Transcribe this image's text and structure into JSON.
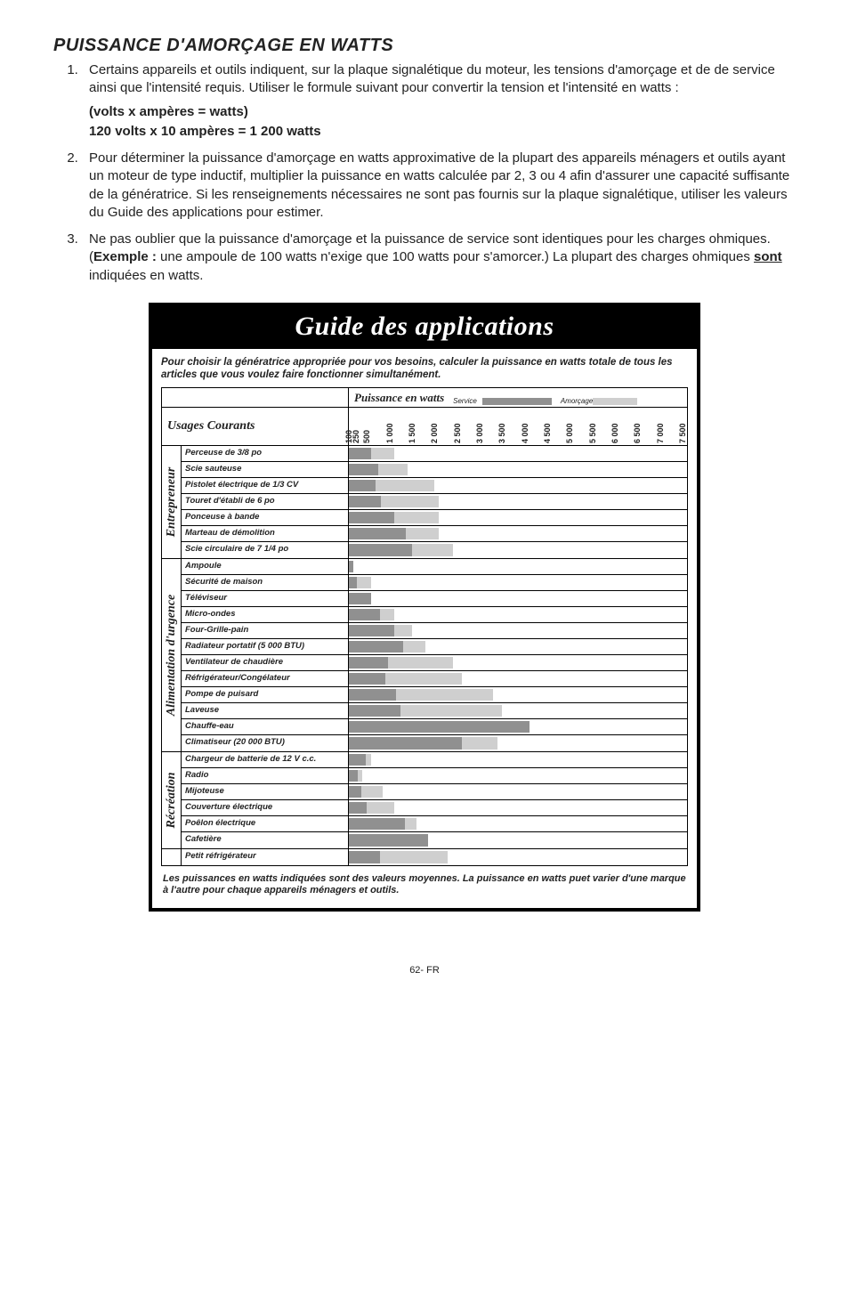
{
  "section_title": "PUISSANCE D'AMORÇAGE EN WATTS",
  "list": {
    "i1": "Certains appareils et outils indiquent, sur la plaque signalétique du moteur, les tensions d'amorçage et de de service ainsi que l'intensité requis. Utiliser le formule suivant pour convertir la tension et l'intensité en watts :",
    "i1_formula1": "(volts x ampères = watts)",
    "i1_formula2": "120 volts x 10 ampères = 1 200 watts",
    "i2": "Pour déterminer la puissance d'amorçage en watts approximative de la plupart des appareils ménagers et outils ayant un moteur de type inductif, multiplier la puissance en watts calculée par 2, 3 ou 4 afin d'assurer une capacité suffisante de la génératrice. Si les renseignements nécessaires ne sont pas fournis sur la plaque signalétique, utiliser les valeurs du Guide des applications pour estimer.",
    "i3_a": "Ne pas oublier que la puissance d'amorçage et la puissance de service sont identiques pour les charges ohmiques. (",
    "i3_bold": "Exemple  :",
    "i3_b": " une ampoule de 100 watts n'exige que 100 watts pour s'amorcer.) La plupart des charges ohmiques ",
    "i3_ul": "sont",
    "i3_c": " indiquées en watts."
  },
  "chart": {
    "title": "Guide des applications",
    "subtitle": "Pour choisir la génératrice appropriée pour vos besoins, calculer la puissance en watts totale de tous les articles que vous voulez faire fonctionner simultanément.",
    "wattage_label": "Puissance en watts",
    "service_label": "Service",
    "amorcage_label": "Amorçage",
    "usages_label": "Usages Courants",
    "footnote": "Les puissances en watts indiquées sont des valeurs moyennes. La puissance en watts puet varier d'une marque à l'autre pour chaque appareils ménagers et outils.",
    "max_watts": 7500,
    "ticks": [
      100,
      250,
      500,
      1000,
      1500,
      2000,
      2500,
      3000,
      3500,
      4000,
      4500,
      5000,
      5500,
      6000,
      6500,
      7000,
      7500
    ],
    "svc_color": "#909090",
    "amc_color": "#cfcfcf",
    "groups": [
      {
        "name": "Entrepreneur",
        "rows": [
          {
            "label": "Perceuse de 3/8 po",
            "svc": 500,
            "amc": 1000
          },
          {
            "label": "Scie sauteuse",
            "svc": 650,
            "amc": 1300
          },
          {
            "label": "Pistolet électrique de 1/3 CV",
            "svc": 600,
            "amc": 1900
          },
          {
            "label": "Touret d'établi de 6 po",
            "svc": 720,
            "amc": 2000
          },
          {
            "label": "Ponceuse à bande",
            "svc": 1000,
            "amc": 2000
          },
          {
            "label": "Marteau de démolition",
            "svc": 1260,
            "amc": 2000
          },
          {
            "label": "Scie circulaire de 7 1/4 po",
            "svc": 1400,
            "amc": 2300
          }
        ]
      },
      {
        "name": "Alimentation d'urgence",
        "rows": [
          {
            "label": "Ampoule",
            "svc": 100,
            "amc": 100
          },
          {
            "label": "Sécurité de maison",
            "svc": 180,
            "amc": 500
          },
          {
            "label": "Téléviseur",
            "svc": 500,
            "amc": 500
          },
          {
            "label": "Micro-ondes",
            "svc": 700,
            "amc": 1000
          },
          {
            "label": "Four-Grille-pain",
            "svc": 1000,
            "amc": 1400
          },
          {
            "label": "Radiateur portatif (5 000 BTU)",
            "svc": 1200,
            "amc": 1700
          },
          {
            "label": "Ventilateur de chaudière",
            "svc": 875,
            "amc": 2300
          },
          {
            "label": "Réfrigérateur/Congélateur",
            "svc": 800,
            "amc": 2500
          },
          {
            "label": "Pompe de puisard",
            "svc": 1050,
            "amc": 3200
          },
          {
            "label": "Laveuse",
            "svc": 1150,
            "amc": 3400
          },
          {
            "label": "Chauffe-eau",
            "svc": 4000,
            "amc": 4000
          },
          {
            "label": "Climatiseur (20 000 BTU)",
            "svc": 2500,
            "amc": 3300
          }
        ]
      },
      {
        "name": "Récréation",
        "rows": [
          {
            "label": "Chargeur de batterie de 12 V c.c.",
            "svc": 380,
            "amc": 500
          },
          {
            "label": "Radio",
            "svc": 200,
            "amc": 300
          },
          {
            "label": "Mijoteuse",
            "svc": 270,
            "amc": 750
          },
          {
            "label": "Couverture électrique",
            "svc": 400,
            "amc": 1000
          },
          {
            "label": "Poêlon électrique",
            "svc": 1250,
            "amc": 1500
          },
          {
            "label": "Cafetière",
            "svc": 1750,
            "amc": 1750
          }
        ]
      },
      {
        "name": "",
        "rows": [
          {
            "label": "Petit réfrigérateur",
            "svc": 700,
            "amc": 2200
          }
        ]
      }
    ]
  },
  "page_no": "62- FR"
}
